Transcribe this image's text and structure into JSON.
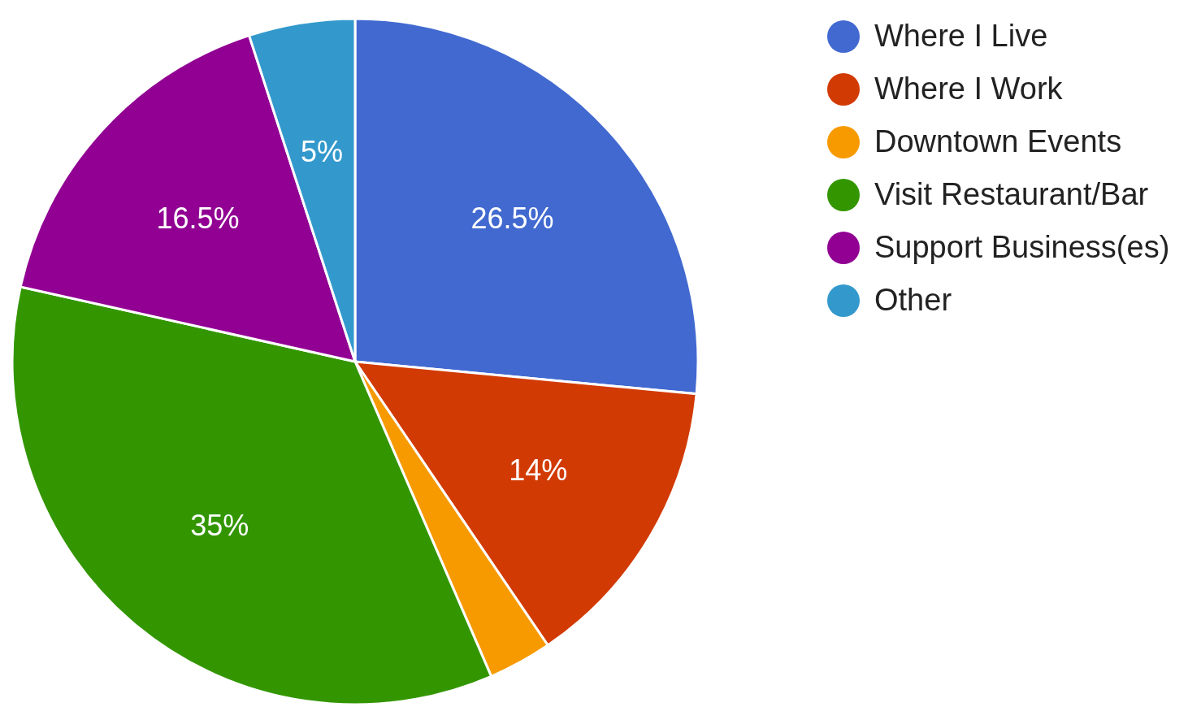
{
  "chart_data": {
    "type": "pie",
    "categories": [
      "Where I Live",
      "Where I Work",
      "Downtown Events",
      "Visit Restaurant/Bar",
      "Support Business(es)",
      "Other"
    ],
    "values": [
      26.5,
      14,
      3,
      35,
      16.5,
      5
    ],
    "colors": [
      "#4169d0",
      "#d23a04",
      "#f79a00",
      "#339600",
      "#910093",
      "#3399cc"
    ],
    "value_labels": [
      "26.5%",
      "14%",
      null,
      "35%",
      "16.5%",
      "5%"
    ],
    "legend": "top right"
  }
}
